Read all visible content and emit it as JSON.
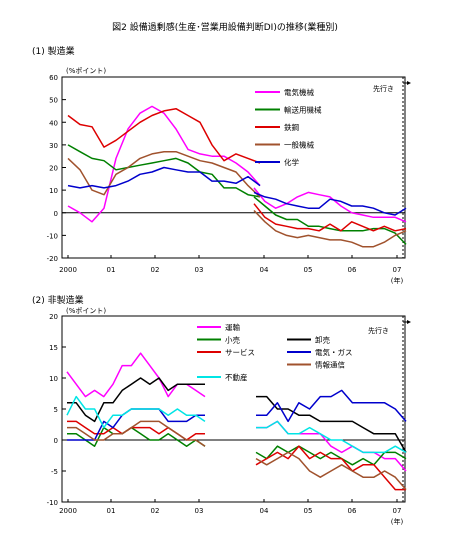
{
  "figure_title": "図2 設備過剰感(生産･営業用設備判断DI)の推移(業種別)",
  "chart_data": [
    {
      "type": "line",
      "section_title": "(1) 製造業",
      "unit_label": "(%ポイント)",
      "forecast_label": "先行き",
      "year_unit_label": "(年)",
      "x_tick_labels": [
        "2000",
        "01",
        "02",
        "03",
        "04",
        "05",
        "06",
        "07"
      ],
      "ylim": [
        -20,
        60
      ],
      "y_ticks": [
        -20,
        -10,
        0,
        10,
        20,
        30,
        40,
        50,
        60
      ],
      "grid": false,
      "legend_position": "top-right",
      "series": [
        {
          "name": "電気機械",
          "color": "#ff00ff",
          "segment1": [
            3,
            0,
            -4,
            2,
            24,
            37,
            44,
            47,
            44,
            37,
            28,
            26,
            25,
            25,
            22,
            18,
            12
          ],
          "segment2": [
            11,
            5,
            2,
            4,
            7,
            9,
            8,
            7,
            3,
            0,
            -1,
            -2,
            -2,
            -2,
            -4
          ]
        },
        {
          "name": "輸送用機械",
          "color": "#008000",
          "segment1": [
            30,
            27,
            24,
            23,
            19,
            20,
            21,
            22,
            23,
            24,
            22,
            18,
            17,
            11,
            11,
            8,
            7
          ],
          "segment2": [
            7,
            3,
            -1,
            -3,
            -3,
            -6,
            -6,
            -7,
            -8,
            -8,
            -8,
            -7,
            -7,
            -9,
            -14
          ]
        },
        {
          "name": "鉄鋼",
          "color": "#dd0000",
          "segment1": [
            43,
            39,
            38,
            29,
            32,
            36,
            40,
            43,
            45,
            46,
            43,
            40,
            30,
            23,
            26,
            24,
            22
          ],
          "segment2": [
            4,
            -2,
            -5,
            -6,
            -7,
            -7,
            -8,
            -5,
            -8,
            -4,
            -6,
            -8,
            -6,
            -8,
            -7
          ]
        },
        {
          "name": "一般機械",
          "color": "#a0522d",
          "segment1": [
            24,
            19,
            10,
            8,
            17,
            20,
            24,
            26,
            27,
            27,
            25,
            23,
            22,
            20,
            18,
            12,
            7
          ],
          "segment2": [
            1,
            -4,
            -8,
            -10,
            -11,
            -10,
            -11,
            -12,
            -12,
            -13,
            -15,
            -15,
            -13,
            -10,
            -8
          ]
        },
        {
          "name": "化学",
          "color": "#0000cc",
          "segment1": [
            12,
            11,
            12,
            11,
            12,
            14,
            17,
            18,
            20,
            19,
            18,
            18,
            14,
            14,
            13,
            16,
            12
          ],
          "segment2": [
            9,
            7,
            6,
            4,
            3,
            2,
            2,
            6,
            5,
            3,
            3,
            2,
            0,
            -1,
            2
          ]
        }
      ]
    },
    {
      "type": "line",
      "section_title": "(2) 非製造業",
      "unit_label": "(%ポイント)",
      "forecast_label": "先行き",
      "year_unit_label": "(年)",
      "x_tick_labels": [
        "2000",
        "01",
        "02",
        "03",
        "04",
        "05",
        "06",
        "07"
      ],
      "ylim": [
        -10,
        20
      ],
      "y_ticks": [
        -10,
        -5,
        0,
        5,
        10,
        15,
        20
      ],
      "grid": false,
      "legend_position": "top",
      "series": [
        {
          "name": "運輸",
          "color": "#ff00ff",
          "segment1": [
            11,
            9,
            7,
            8,
            7,
            9,
            12,
            12,
            14,
            12,
            10,
            7,
            9,
            9,
            8,
            7
          ],
          "segment2": [
            2,
            2,
            3,
            1,
            1,
            1,
            1,
            -1,
            -2,
            -1,
            -2,
            -2,
            -3,
            -3,
            -5
          ]
        },
        {
          "name": "小売",
          "color": "#008000",
          "segment1": [
            1,
            1,
            0,
            -1,
            2,
            1,
            1,
            2,
            1,
            0,
            0,
            1,
            0,
            -1,
            0,
            -1
          ],
          "segment2": [
            -2,
            -3,
            -1,
            -2,
            -1,
            -2,
            -3,
            -2,
            -3,
            -4,
            -3,
            -4,
            -2,
            -2,
            -3
          ]
        },
        {
          "name": "サービス",
          "color": "#dd0000",
          "segment1": [
            3,
            3,
            2,
            1,
            1,
            2,
            1,
            2,
            2,
            2,
            1,
            2,
            1,
            0,
            1,
            1
          ],
          "segment2": [
            -4,
            -3,
            -2,
            -3,
            -1,
            -3,
            -2,
            -3,
            -3,
            -5,
            -4,
            -4,
            -6,
            -8,
            -8
          ]
        },
        {
          "name": "卸売",
          "color": "#000000",
          "segment1": [
            6,
            6,
            4,
            3,
            6,
            6,
            8,
            9,
            10,
            9,
            10,
            8,
            9,
            9,
            9,
            9
          ],
          "segment2": [
            7,
            7,
            5,
            5,
            4,
            4,
            3,
            3,
            3,
            3,
            2,
            1,
            1,
            1,
            -2
          ]
        },
        {
          "name": "電気・ガス",
          "color": "#0000cc",
          "segment1": [
            0,
            0,
            0,
            0,
            3,
            2,
            4,
            5,
            5,
            5,
            5,
            3,
            3,
            3,
            4,
            4
          ],
          "segment2": [
            4,
            4,
            6,
            3,
            6,
            5,
            7,
            7,
            8,
            6,
            6,
            6,
            6,
            5,
            3
          ]
        },
        {
          "name": "情報通信",
          "color": "#a0522d",
          "segment1": [
            2,
            2,
            1,
            0,
            0,
            1,
            1,
            2,
            3,
            3,
            3,
            2,
            1,
            0,
            0,
            -1
          ],
          "segment2": [
            -3,
            -4,
            -3,
            -2,
            -3,
            -5,
            -6,
            -5,
            -4,
            -5,
            -6,
            -6,
            -5,
            -6,
            -8
          ]
        },
        {
          "name": "不動産",
          "color": "#00e5e5",
          "segment1": [
            4,
            7,
            5,
            5,
            2,
            4,
            4,
            5,
            5,
            5,
            5,
            4,
            5,
            4,
            4,
            3
          ],
          "segment2": [
            2,
            2,
            3,
            1,
            1,
            2,
            1,
            0,
            0,
            -1,
            -2,
            -2,
            -2,
            -1,
            -2
          ]
        }
      ]
    }
  ]
}
